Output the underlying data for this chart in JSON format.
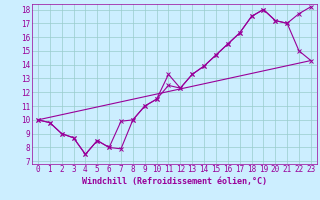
{
  "xlabel": "Windchill (Refroidissement éolien,°C)",
  "bg_color": "#cceeff",
  "line_color": "#990099",
  "grid_color": "#99cccc",
  "xlim": [
    -0.5,
    23.5
  ],
  "ylim": [
    6.8,
    18.4
  ],
  "xticks": [
    0,
    1,
    2,
    3,
    4,
    5,
    6,
    7,
    8,
    9,
    10,
    11,
    12,
    13,
    14,
    15,
    16,
    17,
    18,
    19,
    20,
    21,
    22,
    23
  ],
  "yticks": [
    7,
    8,
    9,
    10,
    11,
    12,
    13,
    14,
    15,
    16,
    17,
    18
  ],
  "line1_x": [
    0,
    1,
    2,
    3,
    4,
    5,
    6,
    7,
    8,
    9,
    10,
    11,
    12,
    13,
    14,
    15,
    16,
    17,
    18,
    19,
    20,
    21,
    22,
    23
  ],
  "line1_y": [
    10.0,
    9.8,
    9.0,
    8.7,
    7.5,
    8.5,
    8.0,
    7.9,
    10.0,
    11.0,
    11.5,
    13.3,
    12.3,
    13.3,
    13.9,
    14.7,
    15.5,
    16.3,
    17.5,
    18.0,
    17.2,
    17.0,
    17.7,
    18.2
  ],
  "line2_x": [
    0,
    1,
    2,
    3,
    4,
    5,
    6,
    7,
    8,
    9,
    10,
    11,
    12,
    13,
    14,
    15,
    16,
    17,
    18,
    19,
    20,
    21,
    22,
    23
  ],
  "line2_y": [
    10.0,
    9.8,
    9.0,
    8.7,
    7.5,
    8.5,
    8.0,
    9.9,
    10.0,
    11.0,
    11.5,
    12.5,
    12.3,
    13.3,
    13.9,
    14.7,
    15.5,
    16.3,
    17.5,
    18.0,
    17.2,
    17.0,
    15.0,
    14.3
  ],
  "line3_x": [
    0,
    23
  ],
  "line3_y": [
    10.0,
    14.3
  ],
  "xlabel_fontsize": 6,
  "tick_fontsize": 5.5
}
